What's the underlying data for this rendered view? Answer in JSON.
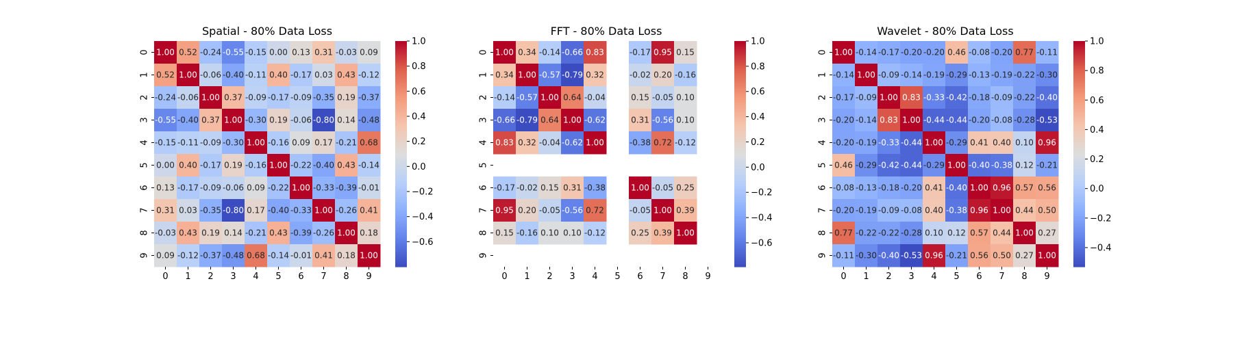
{
  "chart_data": [
    {
      "type": "heatmap",
      "title": "Spatial - 80% Data Loss",
      "xlabel": "",
      "ylabel": "",
      "categories": [
        "0",
        "1",
        "2",
        "3",
        "4",
        "5",
        "6",
        "7",
        "8",
        "9"
      ],
      "value_labels": true,
      "colormap": "coolwarm",
      "vmin": -0.8,
      "vmax": 1.0,
      "colorbar_ticks": [
        -0.6,
        -0.4,
        -0.2,
        0.0,
        0.2,
        0.4,
        0.6,
        0.8,
        1.0
      ],
      "colorbar_tick_labels": [
        "−0.6",
        "−0.4",
        "−0.2",
        "0.0",
        "0.2",
        "0.4",
        "0.6",
        "0.8",
        "1.0"
      ],
      "values": [
        [
          1.0,
          0.52,
          -0.24,
          -0.55,
          -0.15,
          0.0,
          0.13,
          0.31,
          -0.03,
          0.09
        ],
        [
          0.52,
          1.0,
          -0.06,
          -0.4,
          -0.11,
          0.4,
          -0.17,
          0.03,
          0.43,
          -0.12
        ],
        [
          -0.24,
          -0.06,
          1.0,
          0.37,
          -0.09,
          -0.17,
          -0.09,
          -0.35,
          0.19,
          -0.37
        ],
        [
          -0.55,
          -0.4,
          0.37,
          1.0,
          -0.3,
          0.19,
          -0.06,
          -0.8,
          0.14,
          -0.48
        ],
        [
          -0.15,
          -0.11,
          -0.09,
          -0.3,
          1.0,
          -0.16,
          0.09,
          0.17,
          -0.21,
          0.68
        ],
        [
          0.0,
          0.4,
          -0.17,
          0.19,
          -0.16,
          1.0,
          -0.22,
          -0.4,
          0.43,
          -0.14
        ],
        [
          0.13,
          -0.17,
          -0.09,
          -0.06,
          0.09,
          -0.22,
          1.0,
          -0.33,
          -0.39,
          -0.01
        ],
        [
          0.31,
          0.03,
          -0.35,
          -0.8,
          0.17,
          -0.4,
          -0.33,
          1.0,
          -0.26,
          0.41
        ],
        [
          -0.03,
          0.43,
          0.19,
          0.14,
          -0.21,
          0.43,
          -0.39,
          -0.26,
          1.0,
          0.18
        ],
        [
          0.09,
          -0.12,
          -0.37,
          -0.48,
          0.68,
          -0.14,
          -0.01,
          0.41,
          0.18,
          1.0
        ]
      ]
    },
    {
      "type": "heatmap",
      "title": "FFT - 80% Data Loss",
      "xlabel": "",
      "ylabel": "",
      "categories": [
        "0",
        "1",
        "2",
        "3",
        "4",
        "5",
        "6",
        "7",
        "8",
        "9"
      ],
      "value_labels": true,
      "colormap": "coolwarm",
      "vmin": -0.79,
      "vmax": 1.0,
      "colorbar_ticks": [
        -0.6,
        -0.4,
        -0.2,
        0.0,
        0.2,
        0.4,
        0.6,
        0.8,
        1.0
      ],
      "colorbar_tick_labels": [
        "−0.6",
        "−0.4",
        "−0.2",
        "0.0",
        "0.2",
        "0.4",
        "0.6",
        "0.8",
        "1.0"
      ],
      "values": [
        [
          1.0,
          0.34,
          -0.14,
          -0.66,
          0.83,
          null,
          -0.17,
          0.95,
          0.15,
          null
        ],
        [
          0.34,
          1.0,
          -0.57,
          -0.79,
          0.32,
          null,
          -0.02,
          0.2,
          -0.16,
          null
        ],
        [
          -0.14,
          -0.57,
          1.0,
          0.64,
          -0.04,
          null,
          0.15,
          -0.05,
          0.1,
          null
        ],
        [
          -0.66,
          -0.79,
          0.64,
          1.0,
          -0.62,
          null,
          0.31,
          -0.56,
          0.1,
          null
        ],
        [
          0.83,
          0.32,
          -0.04,
          -0.62,
          1.0,
          null,
          -0.38,
          0.72,
          -0.12,
          null
        ],
        [
          null,
          null,
          null,
          null,
          null,
          null,
          null,
          null,
          null,
          null
        ],
        [
          -0.17,
          -0.02,
          0.15,
          0.31,
          -0.38,
          null,
          1.0,
          -0.05,
          0.25,
          null
        ],
        [
          0.95,
          0.2,
          -0.05,
          -0.56,
          0.72,
          null,
          -0.05,
          1.0,
          0.39,
          null
        ],
        [
          0.15,
          -0.16,
          0.1,
          0.1,
          -0.12,
          null,
          0.25,
          0.39,
          1.0,
          null
        ],
        [
          null,
          null,
          null,
          null,
          null,
          null,
          null,
          null,
          null,
          null
        ]
      ]
    },
    {
      "type": "heatmap",
      "title": "Wavelet - 80% Data Loss",
      "xlabel": "",
      "ylabel": "",
      "categories": [
        "0",
        "1",
        "2",
        "3",
        "4",
        "5",
        "6",
        "7",
        "8",
        "9"
      ],
      "value_labels": true,
      "colormap": "coolwarm",
      "vmin": -0.53,
      "vmax": 1.0,
      "colorbar_ticks": [
        -0.4,
        -0.2,
        0.0,
        0.2,
        0.4,
        0.6,
        0.8,
        1.0
      ],
      "colorbar_tick_labels": [
        "−0.4",
        "−0.2",
        "0.0",
        "0.2",
        "0.4",
        "0.6",
        "0.8",
        "1.0"
      ],
      "values": [
        [
          1.0,
          -0.14,
          -0.17,
          -0.2,
          -0.2,
          0.46,
          -0.08,
          -0.2,
          0.77,
          -0.11
        ],
        [
          -0.14,
          1.0,
          -0.09,
          -0.14,
          -0.19,
          -0.29,
          -0.13,
          -0.19,
          -0.22,
          -0.3
        ],
        [
          -0.17,
          -0.09,
          1.0,
          0.83,
          -0.33,
          -0.42,
          -0.18,
          -0.09,
          -0.22,
          -0.4
        ],
        [
          -0.2,
          -0.14,
          0.83,
          1.0,
          -0.44,
          -0.44,
          -0.2,
          -0.08,
          -0.28,
          -0.53
        ],
        [
          -0.2,
          -0.19,
          -0.33,
          -0.44,
          1.0,
          -0.29,
          0.41,
          0.4,
          0.1,
          0.96
        ],
        [
          0.46,
          -0.29,
          -0.42,
          -0.44,
          -0.29,
          1.0,
          -0.4,
          -0.38,
          0.12,
          -0.21
        ],
        [
          -0.08,
          -0.13,
          -0.18,
          -0.2,
          0.41,
          -0.4,
          1.0,
          0.96,
          0.57,
          0.56
        ],
        [
          -0.2,
          -0.19,
          -0.09,
          -0.08,
          0.4,
          -0.38,
          0.96,
          1.0,
          0.44,
          0.5
        ],
        [
          0.77,
          -0.22,
          -0.22,
          -0.28,
          0.1,
          0.12,
          0.57,
          0.44,
          1.0,
          0.27
        ],
        [
          -0.11,
          -0.3,
          -0.4,
          -0.53,
          0.96,
          -0.21,
          0.56,
          0.5,
          0.27,
          1.0
        ]
      ]
    }
  ]
}
